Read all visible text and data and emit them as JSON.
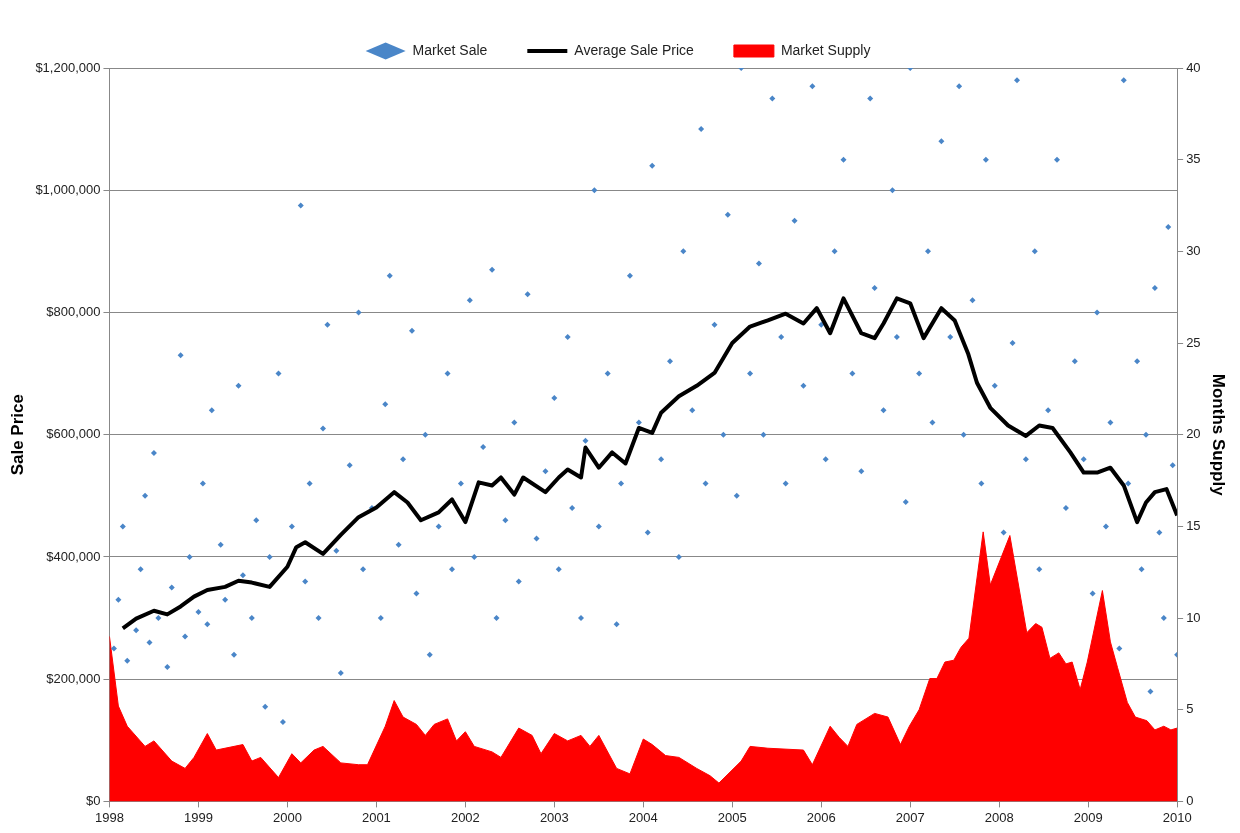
{
  "chart_data": {
    "type": "scatter",
    "legend": "top",
    "grid": "y",
    "ylabel": "Sale Price",
    "y2label": "Months Supply",
    "xlim": [
      1998,
      2010
    ],
    "xticks": [
      1998,
      1999,
      2000,
      2001,
      2002,
      2003,
      2004,
      2005,
      2006,
      2007,
      2008,
      2009,
      2010
    ],
    "ylim": [
      0,
      1200000
    ],
    "yticks": [
      {
        "value": 0,
        "label": "$0"
      },
      {
        "value": 200000,
        "label": "$200,000"
      },
      {
        "value": 400000,
        "label": "$400,000"
      },
      {
        "value": 600000,
        "label": "$600,000"
      },
      {
        "value": 800000,
        "label": "$800,000"
      },
      {
        "value": 1000000,
        "label": "$1,000,000"
      },
      {
        "value": 1200000,
        "label": "$1,200,000"
      }
    ],
    "y2lim": [
      0,
      40
    ],
    "y2ticks": [
      0,
      5,
      10,
      15,
      20,
      25,
      30,
      35,
      40
    ],
    "series": [
      {
        "name": "Market Sale",
        "type": "scatter",
        "marker": "diamond",
        "color": "#4a86c8",
        "x": [
          1998.05,
          1998.1,
          1998.15,
          1998.2,
          1998.3,
          1998.35,
          1998.4,
          1998.45,
          1998.5,
          1998.55,
          1998.65,
          1998.7,
          1998.8,
          1998.85,
          1998.9,
          1999.0,
          1999.05,
          1999.1,
          1999.15,
          1999.25,
          1999.3,
          1999.4,
          1999.45,
          1999.5,
          1999.6,
          1999.65,
          1999.75,
          1999.8,
          1999.9,
          1999.95,
          2000.05,
          2000.15,
          2000.2,
          2000.25,
          2000.35,
          2000.4,
          2000.45,
          2000.55,
          2000.6,
          2000.7,
          2000.8,
          2000.85,
          2000.95,
          2001.05,
          2001.1,
          2001.15,
          2001.25,
          2001.3,
          2001.4,
          2001.45,
          2001.55,
          2001.6,
          2001.7,
          2001.8,
          2001.85,
          2001.95,
          2002.05,
          2002.1,
          2002.2,
          2002.3,
          2002.35,
          2002.45,
          2002.55,
          2002.6,
          2002.7,
          2002.8,
          2002.9,
          2003.0,
          2003.05,
          2003.15,
          2003.2,
          2003.3,
          2003.35,
          2003.45,
          2003.5,
          2003.6,
          2003.7,
          2003.75,
          2003.85,
          2003.95,
          2004.05,
          2004.1,
          2004.2,
          2004.3,
          2004.4,
          2004.45,
          2004.55,
          2004.65,
          2004.7,
          2004.8,
          2004.9,
          2004.95,
          2005.05,
          2005.1,
          2005.2,
          2005.3,
          2005.35,
          2005.45,
          2005.55,
          2005.6,
          2005.7,
          2005.8,
          2005.9,
          2006.0,
          2006.05,
          2006.15,
          2006.25,
          2006.35,
          2006.45,
          2006.55,
          2006.6,
          2006.7,
          2006.8,
          2006.85,
          2006.95,
          2007.0,
          2007.1,
          2007.2,
          2007.25,
          2007.35,
          2007.45,
          2007.55,
          2007.6,
          2007.7,
          2007.8,
          2007.85,
          2007.95,
          2008.05,
          2008.15,
          2008.2,
          2008.3,
          2008.4,
          2008.45,
          2008.55,
          2008.65,
          2008.75,
          2008.85,
          2008.95,
          2009.05,
          2009.1,
          2009.2,
          2009.25,
          2009.35,
          2009.4,
          2009.45,
          2009.55,
          2009.6,
          2009.65,
          2009.7,
          2009.75,
          2009.8,
          2009.85,
          2009.9,
          2009.95,
          2010.0
        ],
        "values": [
          250000,
          330000,
          450000,
          230000,
          280000,
          380000,
          500000,
          260000,
          570000,
          300000,
          220000,
          350000,
          730000,
          270000,
          400000,
          310000,
          520000,
          290000,
          640000,
          420000,
          330000,
          240000,
          680000,
          370000,
          300000,
          460000,
          155000,
          400000,
          700000,
          130000,
          450000,
          975000,
          360000,
          520000,
          300000,
          610000,
          780000,
          410000,
          210000,
          550000,
          800000,
          380000,
          480000,
          300000,
          650000,
          860000,
          420000,
          560000,
          770000,
          340000,
          600000,
          240000,
          450000,
          700000,
          380000,
          520000,
          820000,
          400000,
          580000,
          870000,
          300000,
          460000,
          620000,
          360000,
          830000,
          430000,
          540000,
          660000,
          380000,
          760000,
          480000,
          300000,
          590000,
          1000000,
          450000,
          700000,
          290000,
          520000,
          860000,
          620000,
          440000,
          1040000,
          560000,
          720000,
          400000,
          900000,
          640000,
          1100000,
          520000,
          780000,
          600000,
          960000,
          500000,
          1200000,
          700000,
          880000,
          600000,
          1150000,
          760000,
          520000,
          950000,
          680000,
          1170000,
          780000,
          560000,
          900000,
          1050000,
          700000,
          540000,
          1150000,
          840000,
          640000,
          1000000,
          760000,
          490000,
          1200000,
          700000,
          900000,
          620000,
          1080000,
          760000,
          1170000,
          600000,
          820000,
          520000,
          1050000,
          680000,
          440000,
          750000,
          1180000,
          560000,
          900000,
          380000,
          640000,
          1050000,
          480000,
          720000,
          560000,
          340000,
          800000,
          450000,
          620000,
          250000,
          1180000,
          520000,
          720000,
          380000,
          600000,
          180000,
          840000,
          440000,
          300000,
          940000,
          550000,
          240000
        ]
      },
      {
        "name": "Average Sale Price",
        "type": "line",
        "color": "#000000",
        "x": [
          1998.15,
          1998.3,
          1998.5,
          1998.65,
          1998.8,
          1998.95,
          1999.1,
          1999.3,
          1999.45,
          1999.6,
          1999.8,
          2000.0,
          2000.1,
          2000.2,
          2000.4,
          2000.6,
          2000.8,
          2001.0,
          2001.2,
          2001.35,
          2001.5,
          2001.7,
          2001.85,
          2002.0,
          2002.15,
          2002.3,
          2002.4,
          2002.55,
          2002.65,
          2002.9,
          2003.05,
          2003.15,
          2003.3,
          2003.35,
          2003.5,
          2003.65,
          2003.8,
          2003.95,
          2004.1,
          2004.2,
          2004.4,
          2004.6,
          2004.8,
          2005.0,
          2005.2,
          2005.4,
          2005.6,
          2005.8,
          2005.95,
          2006.1,
          2006.25,
          2006.45,
          2006.6,
          2006.7,
          2006.85,
          2007.0,
          2007.15,
          2007.35,
          2007.5,
          2007.65,
          2007.75,
          2007.9,
          2008.1,
          2008.3,
          2008.45,
          2008.6,
          2008.8,
          2008.95,
          2009.1,
          2009.25,
          2009.4,
          2009.55,
          2009.65,
          2009.75,
          2009.88,
          2010.0
        ],
        "values": [
          283000,
          299000,
          312000,
          306000,
          319000,
          335000,
          346000,
          351000,
          361000,
          358000,
          351000,
          384000,
          416000,
          424000,
          405000,
          436000,
          465000,
          481000,
          506000,
          489000,
          460000,
          473000,
          494000,
          457000,
          522000,
          517000,
          530000,
          502000,
          530000,
          506000,
          530000,
          543000,
          530000,
          579000,
          546000,
          571000,
          553000,
          611000,
          603000,
          636000,
          663000,
          680000,
          701000,
          750000,
          777000,
          787000,
          798000,
          782000,
          807000,
          766000,
          823000,
          766000,
          758000,
          782000,
          823000,
          815000,
          758000,
          807000,
          787000,
          733000,
          685000,
          644000,
          615000,
          598000,
          615000,
          611000,
          571000,
          538000,
          538000,
          546000,
          517000,
          457000,
          489000,
          506000,
          511000,
          468000
        ]
      },
      {
        "name": "Market Supply",
        "type": "area",
        "axis": "y2",
        "color": "#ff0000",
        "x": [
          1998.0,
          1998.1,
          1998.2,
          1998.4,
          1998.5,
          1998.7,
          1998.85,
          1998.95,
          1999.1,
          1999.2,
          1999.5,
          1999.6,
          1999.7,
          1999.9,
          2000.05,
          2000.15,
          2000.3,
          2000.4,
          2000.6,
          2000.8,
          2000.9,
          2001.1,
          2001.2,
          2001.3,
          2001.45,
          2001.55,
          2001.65,
          2001.8,
          2001.9,
          2002.0,
          2002.1,
          2002.3,
          2002.4,
          2002.6,
          2002.75,
          2002.85,
          2003.0,
          2003.15,
          2003.3,
          2003.4,
          2003.5,
          2003.7,
          2003.85,
          2004.0,
          2004.1,
          2004.25,
          2004.4,
          2004.6,
          2004.75,
          2004.85,
          2005.1,
          2005.2,
          2005.4,
          2005.8,
          2005.9,
          2006.1,
          2006.2,
          2006.3,
          2006.4,
          2006.6,
          2006.75,
          2006.89,
          2006.99,
          2007.1,
          2007.22,
          2007.3,
          2007.39,
          2007.49,
          2007.57,
          2007.66,
          2007.82,
          2007.9,
          2008.12,
          2008.31,
          2008.41,
          2008.48,
          2008.57,
          2008.67,
          2008.75,
          2008.82,
          2008.91,
          2008.99,
          2009.16,
          2009.25,
          2009.33,
          2009.44,
          2009.53,
          2009.66,
          2009.75,
          2009.85,
          2009.93,
          2010.0
        ],
        "values": [
          9.0,
          5.2,
          4.1,
          3.0,
          3.3,
          2.2,
          1.8,
          2.4,
          3.7,
          2.8,
          3.1,
          2.2,
          2.4,
          1.3,
          2.6,
          2.1,
          2.8,
          3.0,
          2.1,
          2.0,
          2.0,
          4.1,
          5.5,
          4.6,
          4.2,
          3.6,
          4.2,
          4.5,
          3.3,
          3.8,
          3.0,
          2.7,
          2.4,
          4.0,
          3.6,
          2.6,
          3.7,
          3.3,
          3.6,
          3.0,
          3.6,
          1.8,
          1.5,
          3.4,
          3.1,
          2.5,
          2.4,
          1.8,
          1.4,
          1.0,
          2.2,
          3.0,
          2.9,
          2.8,
          2.0,
          4.1,
          3.5,
          3.0,
          4.2,
          4.8,
          4.6,
          3.1,
          4.1,
          5.0,
          6.7,
          6.7,
          7.6,
          7.7,
          8.4,
          8.9,
          14.7,
          11.8,
          14.5,
          9.2,
          9.7,
          9.5,
          7.8,
          8.1,
          7.5,
          7.6,
          6.1,
          7.6,
          11.5,
          8.7,
          7.3,
          5.4,
          4.6,
          4.4,
          3.9,
          4.1,
          3.9,
          4.0
        ]
      }
    ]
  }
}
